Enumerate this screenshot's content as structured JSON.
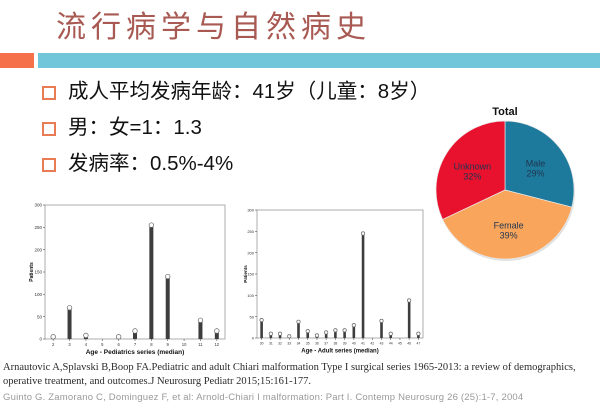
{
  "slide": {
    "title": "流行病学与自然病史",
    "title_color": "#A85952",
    "accent_orange": "#F4714A",
    "accent_teal": "#72C6D9",
    "bullet_marker_color": "#E97C54"
  },
  "bullets": [
    "成人平均发病年龄：41岁（儿童：8岁）",
    "男：女=1：1.3",
    "发病率：0.5%-4%"
  ],
  "chart_data": [
    {
      "type": "pie",
      "title": "Total",
      "slices": [
        {
          "label": "Male",
          "pct": 29,
          "color": "#1E7A9C"
        },
        {
          "label": "Female",
          "pct": 39,
          "color": "#F9A65C"
        },
        {
          "label": "Unknown",
          "pct": 32,
          "color": "#E8112E"
        }
      ],
      "label_color": "#1F3550",
      "legend_position": "none"
    },
    {
      "type": "bar",
      "title": "",
      "categories": [
        "2",
        "3",
        "4",
        "5",
        "6",
        "7",
        "8",
        "9",
        "10",
        "11",
        "12"
      ],
      "values": [
        5,
        70,
        8,
        0,
        5,
        18,
        255,
        140,
        0,
        42,
        18
      ],
      "xlabel": "Age - Pediatrics series (median)",
      "ylabel": "Patients",
      "ylim": [
        0,
        300
      ],
      "yticks": [
        0,
        50,
        100,
        150,
        200,
        250,
        300
      ],
      "grid": false
    },
    {
      "type": "bar",
      "title": "",
      "categories": [
        "30",
        "31",
        "32",
        "33",
        "34",
        "35",
        "36",
        "37",
        "38",
        "39",
        "40",
        "41",
        "42",
        "43",
        "44",
        "45",
        "46",
        "47"
      ],
      "values": [
        42,
        10,
        10,
        4,
        38,
        16,
        6,
        13,
        18,
        18,
        30,
        245,
        0,
        40,
        10,
        0,
        88,
        10
      ],
      "xlabel": "Age - Adult series (median)",
      "ylabel": "Patients",
      "ylim": [
        0,
        300
      ],
      "yticks": [
        0,
        50,
        100,
        150,
        200,
        250,
        300
      ],
      "grid": false
    }
  ],
  "citations": [
    "Arnautovic A,Splavski B,Boop FA.Pediatric and adult Chiari malformation Type I surgical series 1965-2013: a review of demographics, operative treatment, and outcomes.J Neurosurg Pediatr 2015;15:161-177.",
    "Guinto G. Zamorano C, Dominguez F, et al: Arnold-Chiari I malformation: Part I. Contemp Neurosurg 26 (25):1-7, 2004"
  ]
}
